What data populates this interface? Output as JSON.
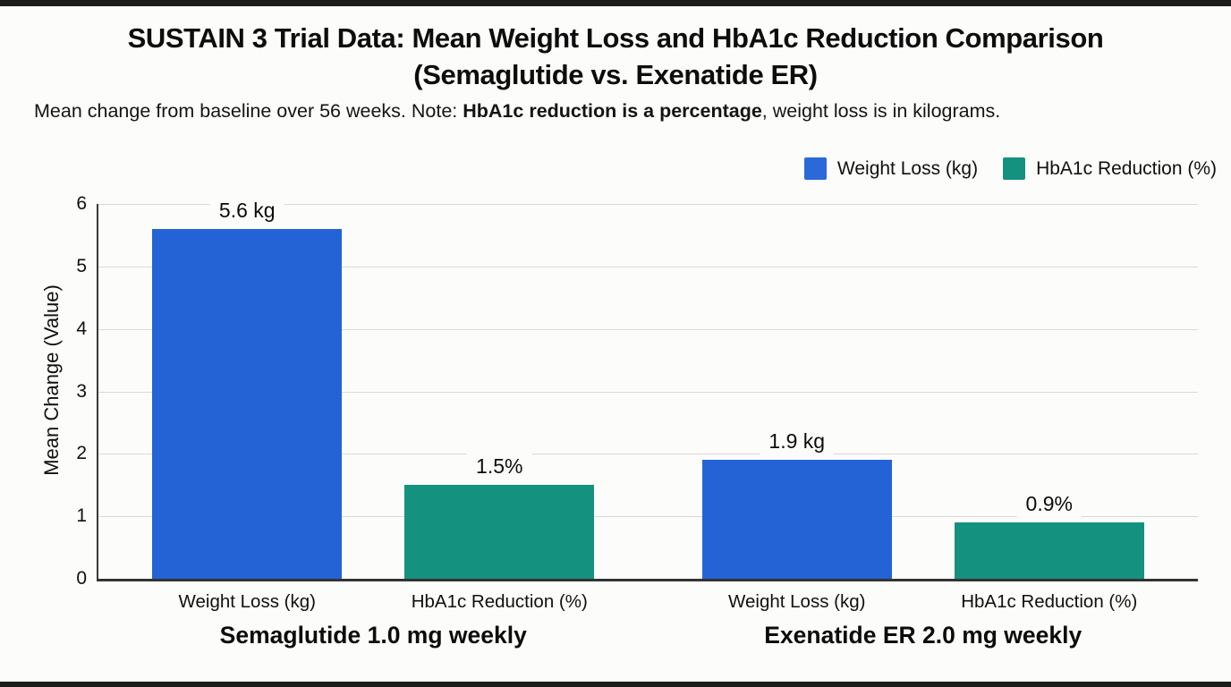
{
  "header": {
    "title_line1": "SUSTAIN 3 Trial Data: Mean Weight Loss and HbA1c Reduction Comparison",
    "title_line2": "(Semaglutide vs. Exenatide ER)",
    "subtitle_prefix": "Mean change from baseline over 56 weeks. Note: ",
    "subtitle_bold": "HbA1c reduction is a percentage",
    "subtitle_suffix": ", weight loss is in kilograms."
  },
  "legend": {
    "items": [
      {
        "label": "Weight Loss (kg)",
        "color": "#2b68d9"
      },
      {
        "label": "HbA1c Reduction (%)",
        "color": "#15917f"
      }
    ]
  },
  "chart_data": {
    "type": "bar",
    "title": "SUSTAIN 3 Trial Data: Mean Weight Loss and HbA1c Reduction Comparison (Semaglutide vs. Exenatide ER)",
    "subtitle": "Mean change from baseline over 56 weeks. Note: HbA1c reduction is a percentage, weight loss is in kilograms.",
    "ylabel": "Mean Change (Value)",
    "xlabel": "",
    "ylim": [
      0,
      6
    ],
    "yticks": [
      0,
      1,
      2,
      3,
      4,
      5,
      6
    ],
    "grid": true,
    "legend_position": "top-right",
    "series": [
      {
        "name": "Weight Loss (kg)",
        "color": "#2463d6"
      },
      {
        "name": "HbA1c Reduction (%)",
        "color": "#15917f"
      }
    ],
    "groups": [
      {
        "label": "Semaglutide 1.0 mg weekly",
        "bars": [
          {
            "series": "Weight Loss (kg)",
            "category": "Weight Loss (kg)",
            "value": 5.6,
            "value_label": "5.6 kg",
            "color": "#2463d6"
          },
          {
            "series": "HbA1c Reduction (%)",
            "category": "HbA1c Reduction (%)",
            "value": 1.5,
            "value_label": "1.5%",
            "color": "#15917f"
          }
        ]
      },
      {
        "label": "Exenatide ER 2.0 mg weekly",
        "bars": [
          {
            "series": "Weight Loss (kg)",
            "category": "Weight Loss (kg)",
            "value": 1.9,
            "value_label": "1.9 kg",
            "color": "#2463d6"
          },
          {
            "series": "HbA1c Reduction (%)",
            "category": "HbA1c Reduction (%)",
            "value": 0.9,
            "value_label": "0.9%",
            "color": "#15917f"
          }
        ]
      }
    ]
  }
}
